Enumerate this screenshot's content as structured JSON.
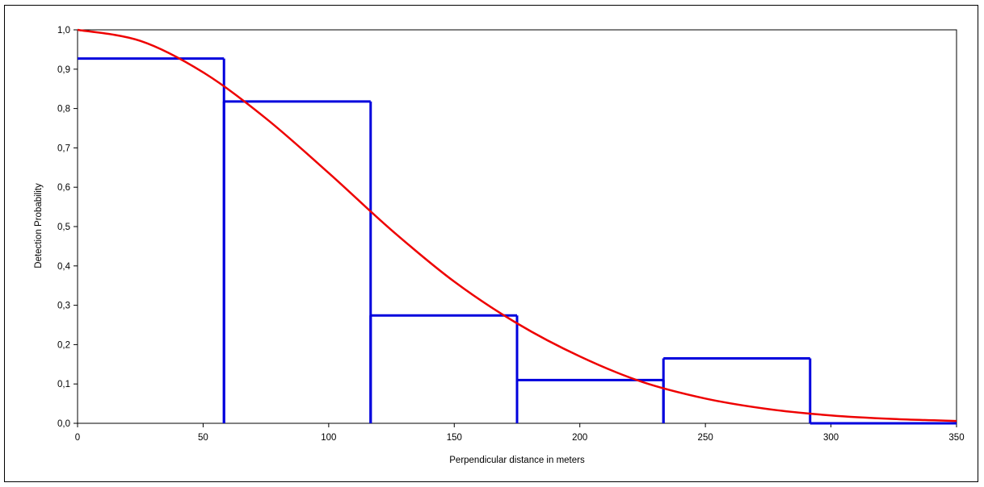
{
  "chart_data": {
    "type": "bar",
    "xlabel": "Perpendicular distance in meters",
    "ylabel": "Detection Probability",
    "xlim": [
      0,
      350
    ],
    "ylim": [
      0,
      1.0
    ],
    "x_ticks": [
      "0",
      "50",
      "100",
      "150",
      "200",
      "250",
      "300",
      "350"
    ],
    "x_tick_values": [
      0,
      50,
      100,
      150,
      200,
      250,
      300,
      350
    ],
    "y_ticks": [
      "0,0",
      "0,1",
      "0,2",
      "0,3",
      "0,4",
      "0,5",
      "0,6",
      "0,7",
      "0,8",
      "0,9",
      "1,0"
    ],
    "y_tick_values": [
      0,
      0.1,
      0.2,
      0.3,
      0.4,
      0.5,
      0.6,
      0.7,
      0.8,
      0.9,
      1.0
    ],
    "grid": false,
    "legend": "none",
    "histogram": {
      "bins": [
        {
          "x0": 0,
          "x1": 58.3,
          "value": 0.927
        },
        {
          "x0": 58.3,
          "x1": 116.7,
          "value": 0.818
        },
        {
          "x0": 116.7,
          "x1": 175.0,
          "value": 0.274
        },
        {
          "x0": 175.0,
          "x1": 233.3,
          "value": 0.11
        },
        {
          "x0": 233.3,
          "x1": 291.7,
          "value": 0.165
        },
        {
          "x0": 291.7,
          "x1": 350.0,
          "value": 0.0
        }
      ],
      "color": "#0000dd"
    },
    "curve": {
      "type": "line",
      "x": [
        0,
        25,
        50,
        75,
        100,
        125,
        150,
        175,
        200,
        225,
        250,
        275,
        300,
        325,
        350
      ],
      "y": [
        1.0,
        0.972,
        0.892,
        0.775,
        0.636,
        0.491,
        0.36,
        0.254,
        0.17,
        0.105,
        0.063,
        0.036,
        0.02,
        0.011,
        0.006
      ],
      "color": "#ee0000"
    }
  }
}
